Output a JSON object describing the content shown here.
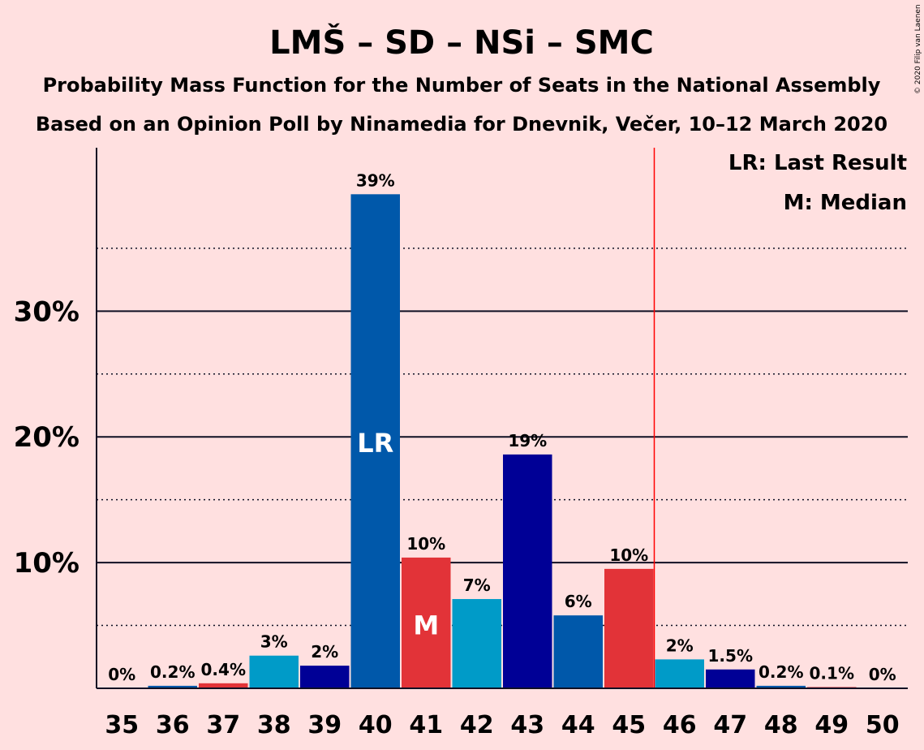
{
  "title": "LMŠ – SD – NSi – SMC",
  "subtitle1": "Probability Mass Function for the Number of Seats in the National Assembly",
  "subtitle2": "Based on an Opinion Poll by Ninamedia for Dnevnik, Večer, 10–12 March 2020",
  "copyright": "© 2020 Filip van Laenen",
  "legend": {
    "last_result": "LR: Last Result",
    "median": "M: Median"
  },
  "chart_data": {
    "type": "bar",
    "categories": [
      "35",
      "36",
      "37",
      "38",
      "39",
      "40",
      "41",
      "42",
      "43",
      "44",
      "45",
      "46",
      "47",
      "48",
      "49",
      "50"
    ],
    "values": [
      0,
      0.2,
      0.4,
      2.6,
      1.8,
      39.3,
      10.4,
      7.1,
      18.6,
      5.8,
      9.5,
      2.3,
      1.5,
      0.2,
      0.1,
      0
    ],
    "data_labels": [
      "0%",
      "0.2%",
      "0.4%",
      "3%",
      "2%",
      "39%",
      "10%",
      "7%",
      "19%",
      "6%",
      "10%",
      "2%",
      "1.5%",
      "0.2%",
      "0.1%",
      "0%"
    ],
    "colors": [
      "#0058AA",
      "#0058AA",
      "#E23338",
      "#009BC8",
      "#000096",
      "#0058AA",
      "#E23338",
      "#009BC8",
      "#000096",
      "#0058AA",
      "#E23338",
      "#009BC8",
      "#000096",
      "#0058AA",
      "#E23338",
      "#009BC8"
    ],
    "ylim": [
      0,
      43
    ],
    "yticks": [
      10,
      20,
      30
    ],
    "ytick_labels": [
      "10%",
      "20%",
      "30%"
    ],
    "minor_gridlines": [
      5,
      15,
      25,
      35
    ],
    "majority_line_after": "45",
    "majority_line_color": "#FF0000",
    "last_result_seat": "40",
    "last_result_label": "LR",
    "median_seat": "41",
    "median_label": "M"
  }
}
